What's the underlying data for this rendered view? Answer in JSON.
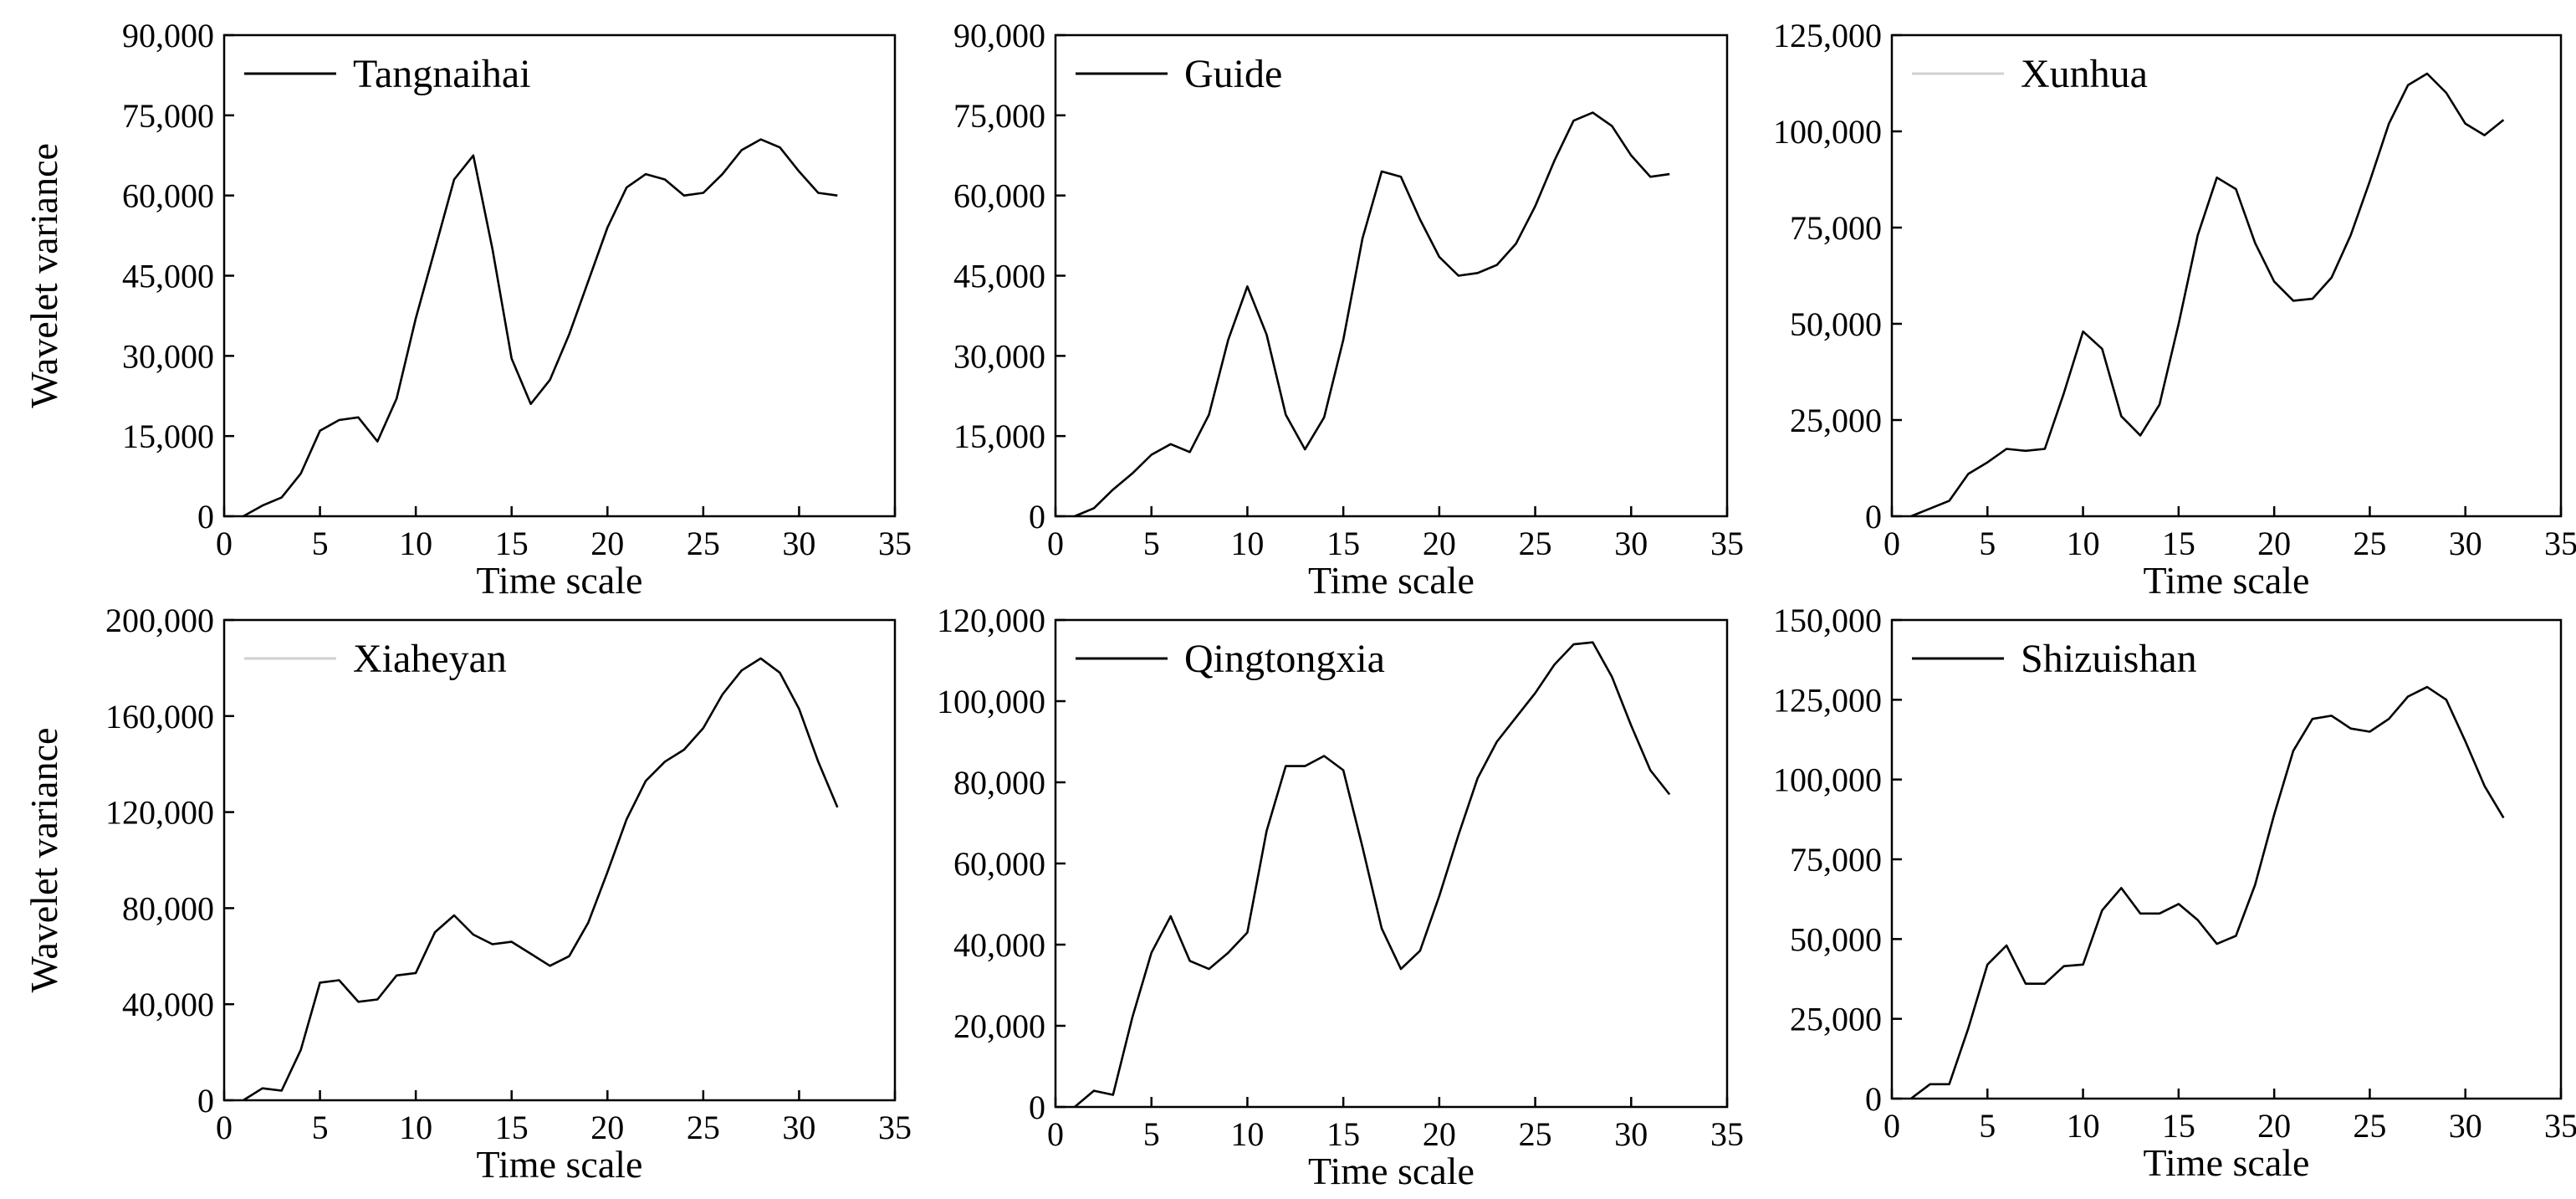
{
  "figure": {
    "background": "#ffffff",
    "line_color": "#000000"
  },
  "chart_data": [
    {
      "type": "line",
      "title": "",
      "legend": "Tangnaihai",
      "legend_line_color": "#000000",
      "xlabel": "Time scale",
      "ylabel": "Wavelet variance",
      "xlim": [
        0,
        35
      ],
      "ylim": [
        0,
        90000
      ],
      "xticks": [
        0,
        5,
        10,
        15,
        20,
        25,
        30,
        35
      ],
      "xtick_labels": [
        "0",
        "5",
        "10",
        "15",
        "20",
        "25",
        "30",
        "35"
      ],
      "yticks": [
        0,
        15000,
        30000,
        45000,
        60000,
        75000,
        90000
      ],
      "ytick_labels": [
        "0",
        "15,000",
        "30,000",
        "45,000",
        "60,000",
        "75,000",
        "90,000"
      ],
      "series": [
        {
          "name": "Tangnaihai",
          "x": [
            1,
            2,
            3,
            4,
            5,
            6,
            7,
            8,
            9,
            10,
            11,
            12,
            13,
            14,
            15,
            16,
            17,
            18,
            19,
            20,
            21,
            22,
            23,
            24,
            25,
            26,
            27,
            28,
            29,
            30,
            31,
            32
          ],
          "values": [
            0,
            2000,
            3500,
            8000,
            16000,
            18000,
            18500,
            14000,
            22000,
            37000,
            50000,
            63000,
            67500,
            50000,
            29500,
            21000,
            25500,
            34000,
            44000,
            54000,
            61500,
            64000,
            63000,
            60000,
            60500,
            64000,
            68500,
            70500,
            69000,
            64500,
            60500,
            60000
          ]
        }
      ]
    },
    {
      "type": "line",
      "title": "",
      "legend": "Guide",
      "legend_line_color": "#000000",
      "xlabel": "Time scale",
      "ylabel": "",
      "xlim": [
        0,
        35
      ],
      "ylim": [
        0,
        90000
      ],
      "xticks": [
        0,
        5,
        10,
        15,
        20,
        25,
        30,
        35
      ],
      "xtick_labels": [
        "0",
        "5",
        "10",
        "15",
        "20",
        "25",
        "30",
        "35"
      ],
      "yticks": [
        0,
        15000,
        30000,
        45000,
        60000,
        75000,
        90000
      ],
      "ytick_labels": [
        "0",
        "15,000",
        "30,000",
        "45,000",
        "60,000",
        "75,000",
        "90,000"
      ],
      "series": [
        {
          "name": "Guide",
          "x": [
            1,
            2,
            3,
            4,
            5,
            6,
            7,
            8,
            9,
            10,
            11,
            12,
            13,
            14,
            15,
            16,
            17,
            18,
            19,
            20,
            21,
            22,
            23,
            24,
            25,
            26,
            27,
            28,
            29,
            30,
            31,
            32
          ],
          "values": [
            0,
            1500,
            5000,
            8000,
            11500,
            13500,
            12000,
            19000,
            33000,
            43000,
            34000,
            19000,
            12500,
            18500,
            33000,
            52000,
            64500,
            63500,
            55500,
            48500,
            45000,
            45500,
            47000,
            51000,
            58000,
            66500,
            74000,
            75500,
            73000,
            67500,
            63500,
            64000
          ]
        }
      ]
    },
    {
      "type": "line",
      "title": "",
      "legend": "Xunhua",
      "legend_line_color": "#d0d0d0",
      "xlabel": "Time scale",
      "ylabel": "",
      "xlim": [
        0,
        35
      ],
      "ylim": [
        0,
        125000
      ],
      "xticks": [
        0,
        5,
        10,
        15,
        20,
        25,
        30,
        35
      ],
      "xtick_labels": [
        "0",
        "5",
        "10",
        "15",
        "20",
        "25",
        "30",
        "35"
      ],
      "yticks": [
        0,
        25000,
        50000,
        75000,
        100000,
        125000
      ],
      "ytick_labels": [
        "0",
        "25,000",
        "50,000",
        "75,000",
        "100,000",
        "125,000"
      ],
      "series": [
        {
          "name": "Xunhua",
          "x": [
            1,
            2,
            3,
            4,
            5,
            6,
            7,
            8,
            9,
            10,
            11,
            12,
            13,
            14,
            15,
            16,
            17,
            18,
            19,
            20,
            21,
            22,
            23,
            24,
            25,
            26,
            27,
            28,
            29,
            30,
            31,
            32
          ],
          "values": [
            0,
            2000,
            4000,
            11000,
            14000,
            17500,
            17000,
            17500,
            32000,
            48000,
            43500,
            26000,
            21000,
            29000,
            50000,
            73000,
            88000,
            85000,
            71000,
            61000,
            56000,
            56500,
            62000,
            73000,
            87000,
            102000,
            112000,
            115000,
            110000,
            102000,
            99000,
            103000
          ]
        }
      ]
    },
    {
      "type": "line",
      "title": "",
      "legend": "Xiaheyan",
      "legend_line_color": "#d0d0d0",
      "xlabel": "Time scale",
      "ylabel": "Wavelet variance",
      "xlim": [
        0,
        35
      ],
      "ylim": [
        0,
        200000
      ],
      "xticks": [
        0,
        5,
        10,
        15,
        20,
        25,
        30,
        35
      ],
      "xtick_labels": [
        "0",
        "5",
        "10",
        "15",
        "20",
        "25",
        "30",
        "35"
      ],
      "yticks": [
        0,
        40000,
        80000,
        120000,
        160000,
        200000
      ],
      "ytick_labels": [
        "0",
        "40,000",
        "80,000",
        "120,000",
        "160,000",
        "200,000"
      ],
      "series": [
        {
          "name": "Xiaheyan",
          "x": [
            1,
            2,
            3,
            4,
            5,
            6,
            7,
            8,
            9,
            10,
            11,
            12,
            13,
            14,
            15,
            16,
            17,
            18,
            19,
            20,
            21,
            22,
            23,
            24,
            25,
            26,
            27,
            28,
            29,
            30,
            31,
            32
          ],
          "values": [
            0,
            5000,
            4000,
            21000,
            49000,
            50000,
            41000,
            42000,
            52000,
            53000,
            70000,
            77000,
            69000,
            65000,
            66000,
            61000,
            56000,
            60000,
            74000,
            95000,
            117000,
            133000,
            141000,
            146000,
            155000,
            169000,
            179000,
            184000,
            178000,
            163000,
            141000,
            122000
          ]
        }
      ]
    },
    {
      "type": "line",
      "title": "",
      "legend": "Qingtongxia",
      "legend_line_color": "#000000",
      "xlabel": "Time scale",
      "ylabel": "",
      "xlim": [
        0,
        35
      ],
      "ylim": [
        0,
        120000
      ],
      "xticks": [
        0,
        5,
        10,
        15,
        20,
        25,
        30,
        35
      ],
      "xtick_labels": [
        "0",
        "5",
        "10",
        "15",
        "20",
        "25",
        "30",
        "35"
      ],
      "yticks": [
        0,
        20000,
        40000,
        60000,
        80000,
        100000,
        120000
      ],
      "ytick_labels": [
        "0",
        "20,000",
        "40,000",
        "60,000",
        "80,000",
        "100,000",
        "120,000"
      ],
      "series": [
        {
          "name": "Qingtongxia",
          "x": [
            1,
            2,
            3,
            4,
            5,
            6,
            7,
            8,
            9,
            10,
            11,
            12,
            13,
            14,
            15,
            16,
            17,
            18,
            19,
            20,
            21,
            22,
            23,
            24,
            25,
            26,
            27,
            28,
            29,
            30,
            31,
            32
          ],
          "values": [
            0,
            4000,
            3000,
            22000,
            38000,
            47000,
            36000,
            34000,
            38000,
            43000,
            68000,
            84000,
            84000,
            86500,
            83000,
            64000,
            44000,
            34000,
            38500,
            52000,
            67000,
            81000,
            90000,
            96000,
            102000,
            109000,
            114000,
            114500,
            106000,
            94000,
            83000,
            77000
          ]
        }
      ]
    },
    {
      "type": "line",
      "title": "",
      "legend": "Shizuishan",
      "legend_line_color": "#000000",
      "xlabel": "Time scale",
      "ylabel": "",
      "xlim": [
        0,
        35
      ],
      "ylim": [
        0,
        150000
      ],
      "xticks": [
        0,
        5,
        10,
        15,
        20,
        25,
        30,
        35
      ],
      "xtick_labels": [
        "0",
        "5",
        "10",
        "15",
        "20",
        "25",
        "30",
        "35"
      ],
      "yticks": [
        0,
        25000,
        50000,
        75000,
        100000,
        125000,
        150000
      ],
      "ytick_labels": [
        "0",
        "25,000",
        "50,000",
        "75,000",
        "100,000",
        "125,000",
        "150,000"
      ],
      "series": [
        {
          "name": "Shizuishan",
          "x": [
            1,
            2,
            3,
            4,
            5,
            6,
            7,
            8,
            9,
            10,
            11,
            12,
            13,
            14,
            15,
            16,
            17,
            18,
            19,
            20,
            21,
            22,
            23,
            24,
            25,
            26,
            27,
            28,
            29,
            30,
            31,
            32
          ],
          "values": [
            0,
            4500,
            4500,
            22000,
            42000,
            48000,
            36000,
            36000,
            41500,
            42000,
            59000,
            66000,
            58000,
            58000,
            61000,
            56000,
            48500,
            51000,
            67000,
            89000,
            109000,
            119000,
            120000,
            116000,
            115000,
            119000,
            126000,
            129000,
            125000,
            112000,
            98000,
            88000
          ]
        }
      ]
    }
  ]
}
